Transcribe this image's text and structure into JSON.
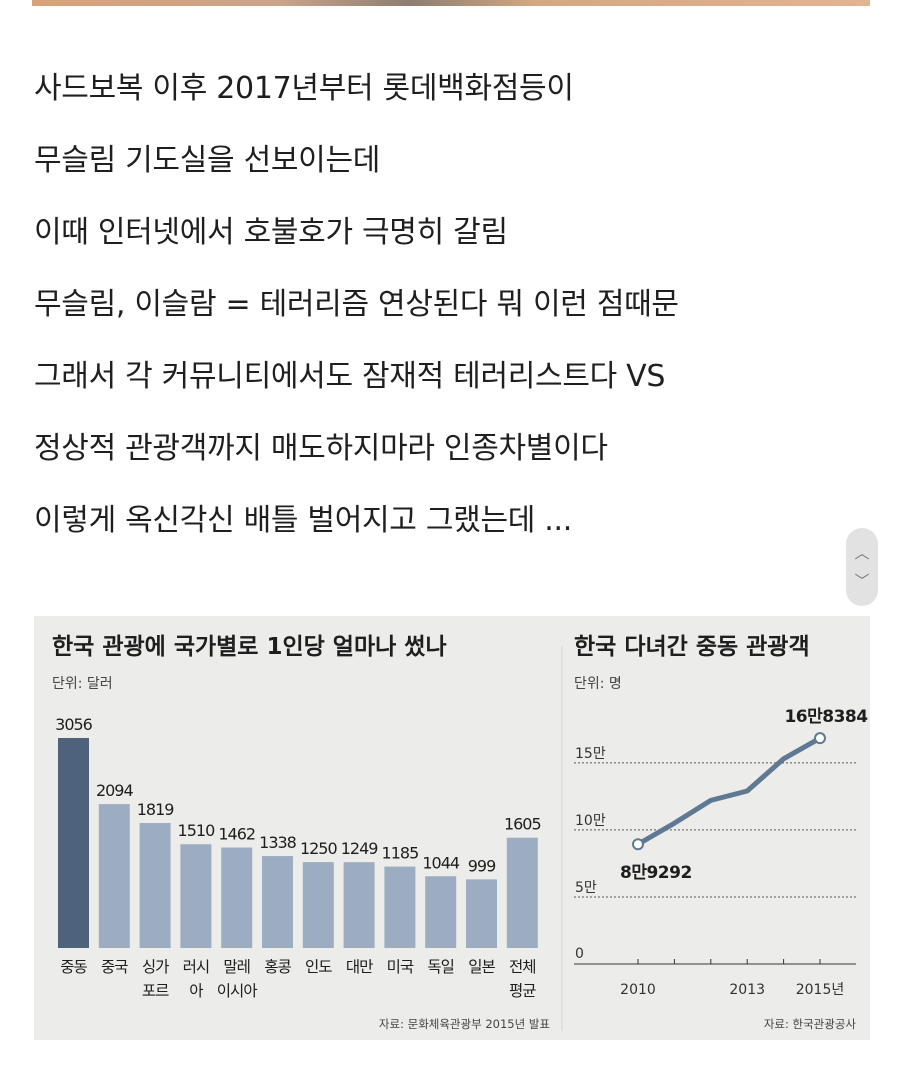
{
  "paragraphs": [
    "사드보복 이후 2017년부터 롯데백화점등이",
    "무슬림 기도실을 선보이는데",
    "이때 인터넷에서 호불호가 극명히 갈림",
    "무슬림, 이슬람 = 테러리즘 연상된다 뭐 이런 점때문",
    "그래서 각 커뮤니티에서도 잠재적 테러리스트다 VS",
    "정상적 관광객까지 매도하지마라 인종차별이다",
    "이렇게 옥신각신 배틀 벌어지고 그랬는데 ..."
  ],
  "scroll_buttons": {
    "up": "︿",
    "down": "﹀"
  },
  "chart_data": [
    {
      "type": "bar",
      "title": "한국 관광에 국가별로 1인당 얼마나 썼나",
      "unit_label": "단위: 달러",
      "categories": [
        [
          "중동"
        ],
        [
          "중국"
        ],
        [
          "싱가",
          "포르"
        ],
        [
          "러시",
          "아"
        ],
        [
          "말레",
          "이시아"
        ],
        [
          "홍콩"
        ],
        [
          "인도"
        ],
        [
          "대만"
        ],
        [
          "미국"
        ],
        [
          "독일"
        ],
        [
          "일본"
        ],
        [
          "전체",
          "평균"
        ]
      ],
      "values": [
        3056,
        2094,
        1819,
        1510,
        1462,
        1338,
        1250,
        1249,
        1185,
        1044,
        999,
        1605
      ],
      "value_labels": [
        "3056",
        "2094",
        "1819",
        "1510",
        "1462",
        "1338",
        "1250",
        "1249",
        "1185",
        "1044",
        "999",
        "1605"
      ],
      "ylim": [
        0,
        3056
      ],
      "colors": {
        "highlight": "#4e637b",
        "normal": "#9cadc2"
      },
      "source": "자료: 문화체육관광부 2015년 발표"
    },
    {
      "type": "line",
      "title": "한국 다녀간 중동 관광객",
      "unit_label": "단위: 명",
      "x": [
        2010,
        2011,
        2012,
        2013,
        2014,
        2015
      ],
      "values": [
        89292,
        105000,
        122000,
        129000,
        153000,
        168384
      ],
      "x_tick_labels": [
        "2010",
        "2013",
        "2015년"
      ],
      "y_tick_labels": [
        "0",
        "5만",
        "10만",
        "15만"
      ],
      "ylim": [
        0,
        170000
      ],
      "annotations": {
        "start": "8만9292",
        "end": "16만8384"
      },
      "colors": {
        "line": "#5e7991",
        "marker_fill": "#ffffff"
      },
      "source": "자료: 한국관광공사"
    }
  ]
}
